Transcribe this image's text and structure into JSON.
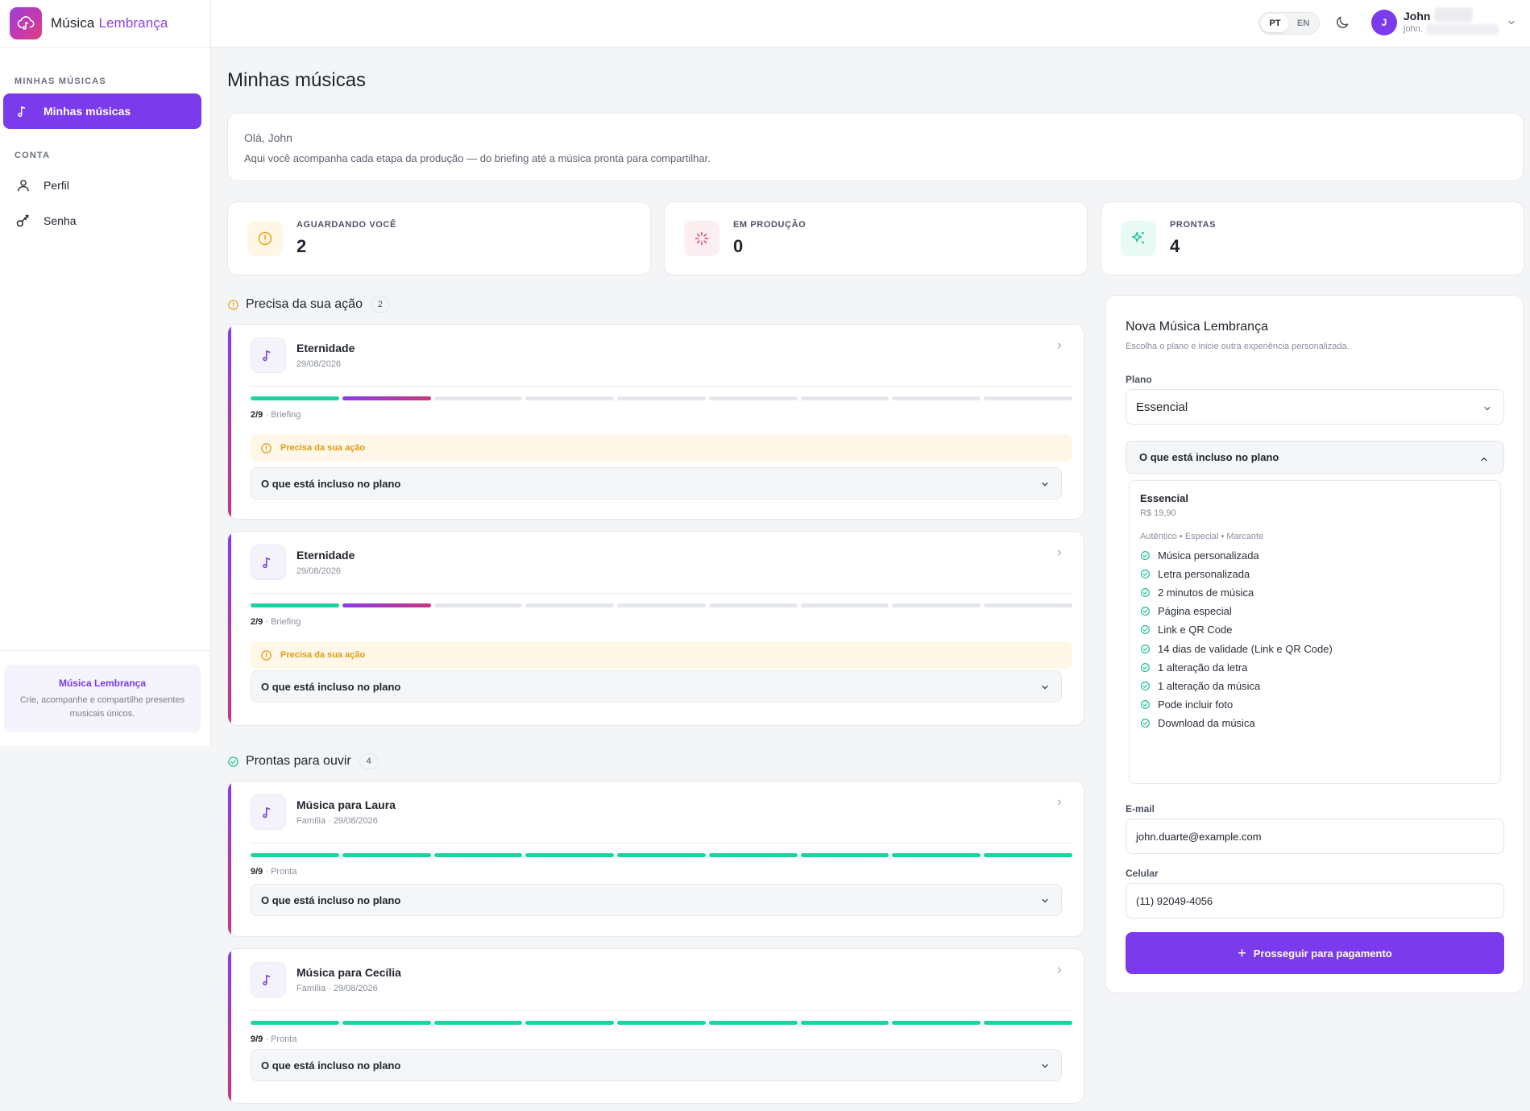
{
  "app": {
    "brand_first": "Música",
    "brand_second": "Lembrança"
  },
  "sidebar": {
    "section_music": "MINHAS MÚSICAS",
    "item_my_songs": "Minhas músicas",
    "section_account": "CONTA",
    "item_profile": "Perfil",
    "item_password": "Senha",
    "promo_title": "Música Lembrança",
    "promo_text": "Crie, acompanhe e compartilhe presentes musicais únicos."
  },
  "topbar": {
    "lang_pt": "PT",
    "lang_en": "EN",
    "lang_selected": "PT",
    "avatar_initial": "J",
    "user_name": "John",
    "user_email": "john."
  },
  "page": {
    "title": "Minhas músicas",
    "greeting": "Olá, John",
    "greeting_sub": "Aqui você acompanha cada etapa da produção — do briefing até a música pronta para compartilhar."
  },
  "stats": [
    {
      "label": "AGUARDANDO VOCÊ",
      "value": "2",
      "icon": "alert-circle-icon",
      "color": "#f0a01c"
    },
    {
      "label": "EM PRODUÇÃO",
      "value": "0",
      "icon": "loader-icon",
      "color": "#e0416e"
    },
    {
      "label": "PRONTAS",
      "value": "4",
      "icon": "sparkles-icon",
      "color": "#1fbf9a"
    }
  ],
  "sections": {
    "action_title": "Precisa da sua ação",
    "action_count": "2",
    "ready_title": "Prontas para ouvir",
    "ready_count": "4"
  },
  "songs_action": [
    {
      "title": "Eternidade",
      "meta": "29/08/2026",
      "step": "2/9",
      "step_label": " · Briefing",
      "progress_done": 2,
      "progress_total": 9,
      "alert": "Precisa da sua ação",
      "included_label": "O que está incluso no plano"
    },
    {
      "title": "Eternidade",
      "meta": "29/08/2026",
      "step": "2/9",
      "step_label": " · Briefing",
      "progress_done": 2,
      "progress_total": 9,
      "alert": "Precisa da sua ação",
      "included_label": "O que está incluso no plano"
    }
  ],
  "songs_ready": [
    {
      "title": "Música para Laura",
      "meta": "Família · 29/08/2026",
      "step": "9/9",
      "step_label": " · Pronta",
      "progress_done": 9,
      "progress_total": 9,
      "included_label": "O que está incluso no plano"
    },
    {
      "title": "Música para Cecília",
      "meta": "Família · 29/08/2026",
      "step": "9/9",
      "step_label": " · Pronta",
      "progress_done": 9,
      "progress_total": 9,
      "included_label": "O que está incluso no plano"
    }
  ],
  "new_song": {
    "title": "Nova Música Lembrança",
    "subtitle": "Escolha o plano e inicie outra experiência personalizada.",
    "plan_label": "Plano",
    "plan_value": "Essencial",
    "included_label": "O que está incluso no plano",
    "plan_name": "Essencial",
    "plan_price": "R$ 19,90",
    "plan_tags": "Autêntico • Especial • Marcante",
    "features": [
      "Música personalizada",
      "Letra personalizada",
      "2 minutos de música",
      "Página especial",
      "Link e QR Code",
      "14 dias de validade (Link e QR Code)",
      "1 alteração da letra",
      "1 alteração da música",
      "Pode incluir foto",
      "Download da música"
    ],
    "email_label": "E-mail",
    "email_value": "john.duarte@example.com",
    "phone_label": "Celular",
    "phone_value": "(11) 92049-4056",
    "cta_label": "Prosseguir para pagamento"
  },
  "colors": {
    "accent": "#7c3aed",
    "progress_done": "#1fd1a1",
    "progress_current": "#c9377e",
    "warning": "#f0a01c",
    "success": "#1fbf9a"
  }
}
